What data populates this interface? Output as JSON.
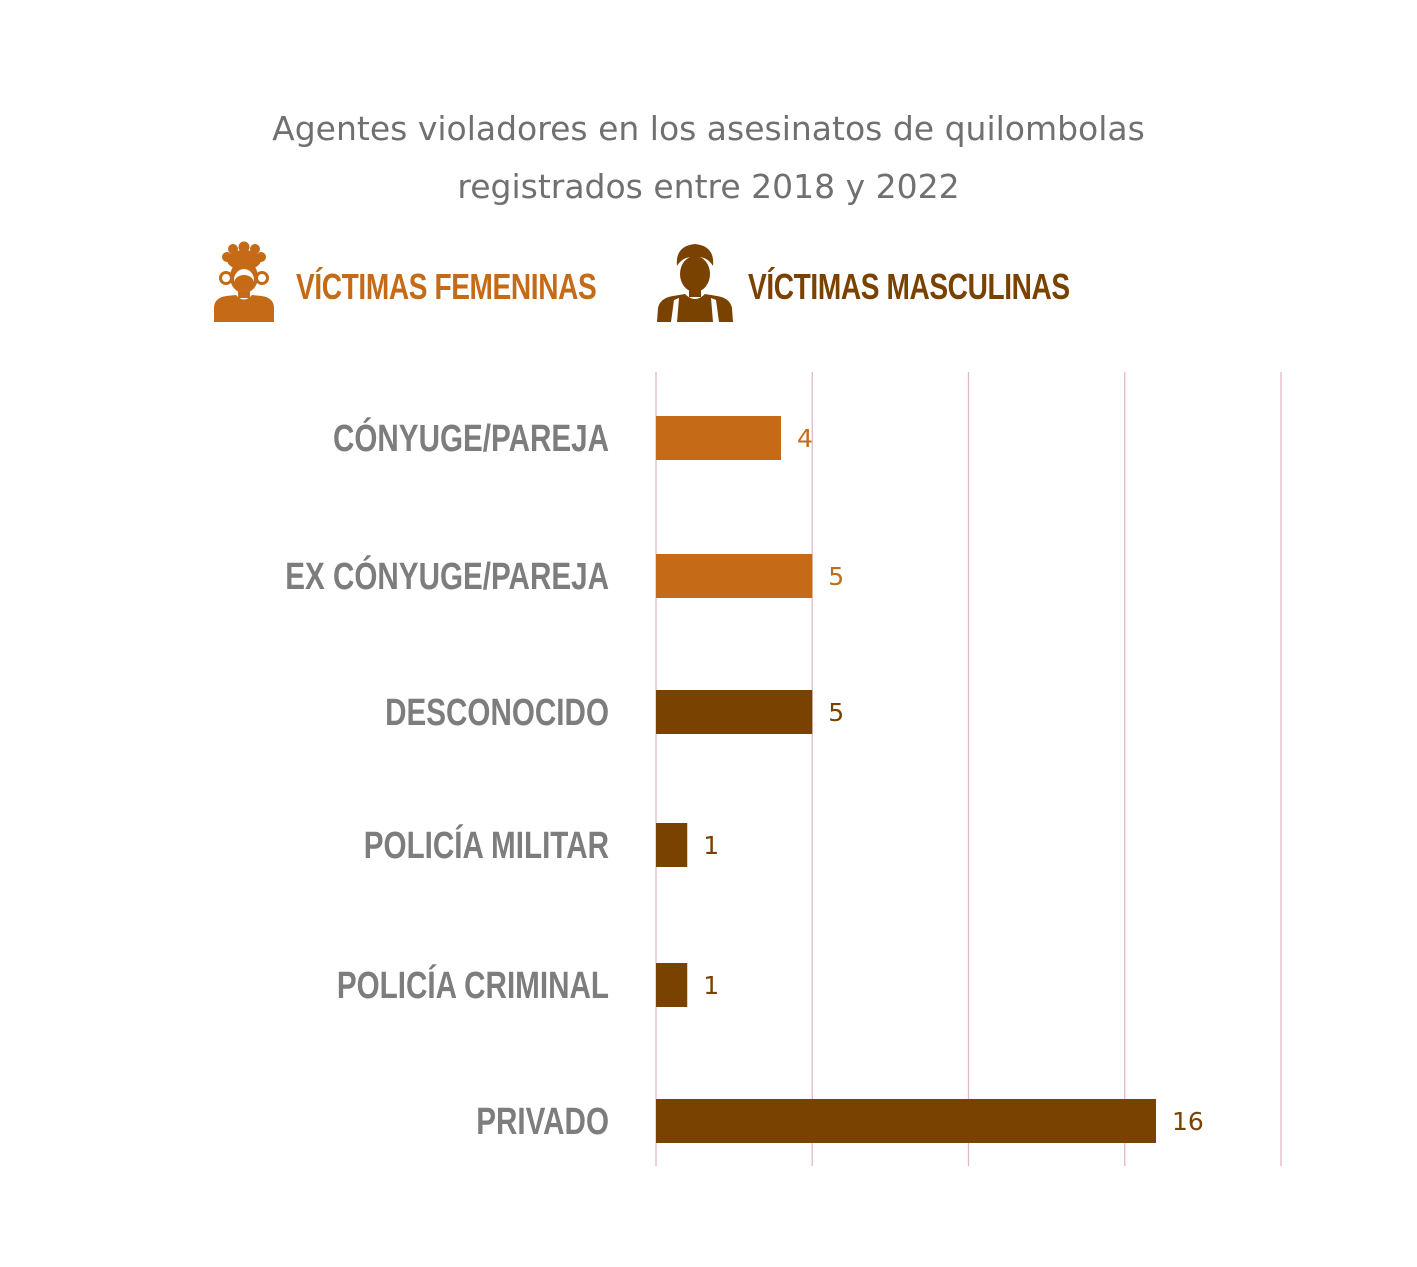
{
  "chart_data": {
    "type": "bar",
    "orientation": "horizontal",
    "title_lines": [
      "Agentes violadores en los asesinatos de quilombolas",
      "registrados entre 2018 y 2022"
    ],
    "xlabel": "",
    "ylabel": "",
    "xlim": [
      0,
      20
    ],
    "grid": true,
    "legend": {
      "placement": "top",
      "items": [
        {
          "label": "VÍCTIMAS FEMENINAS",
          "color": "#c56a16",
          "icon": "female-person-icon"
        },
        {
          "label": "VÍCTIMAS MASCULINAS",
          "color": "#7a4200",
          "icon": "male-person-icon"
        }
      ]
    },
    "categories": [
      "CÓNYUGE/PAREJA",
      "EX CÓNYUGE/PAREJA",
      "DESCONOCIDO",
      "POLICÍA MILITAR",
      "POLICÍA CRIMINAL",
      "PRIVADO"
    ],
    "values": [
      4,
      5,
      5,
      1,
      1,
      16
    ],
    "value_labels": [
      "4",
      "5",
      "5",
      "1",
      "1",
      "16"
    ],
    "bar_series": [
      "VÍCTIMAS FEMENINAS",
      "VÍCTIMAS FEMENINAS",
      "VÍCTIMAS MASCULINAS",
      "VÍCTIMAS MASCULINAS",
      "VÍCTIMAS MASCULINAS",
      "VÍCTIMAS MASCULINAS"
    ]
  }
}
